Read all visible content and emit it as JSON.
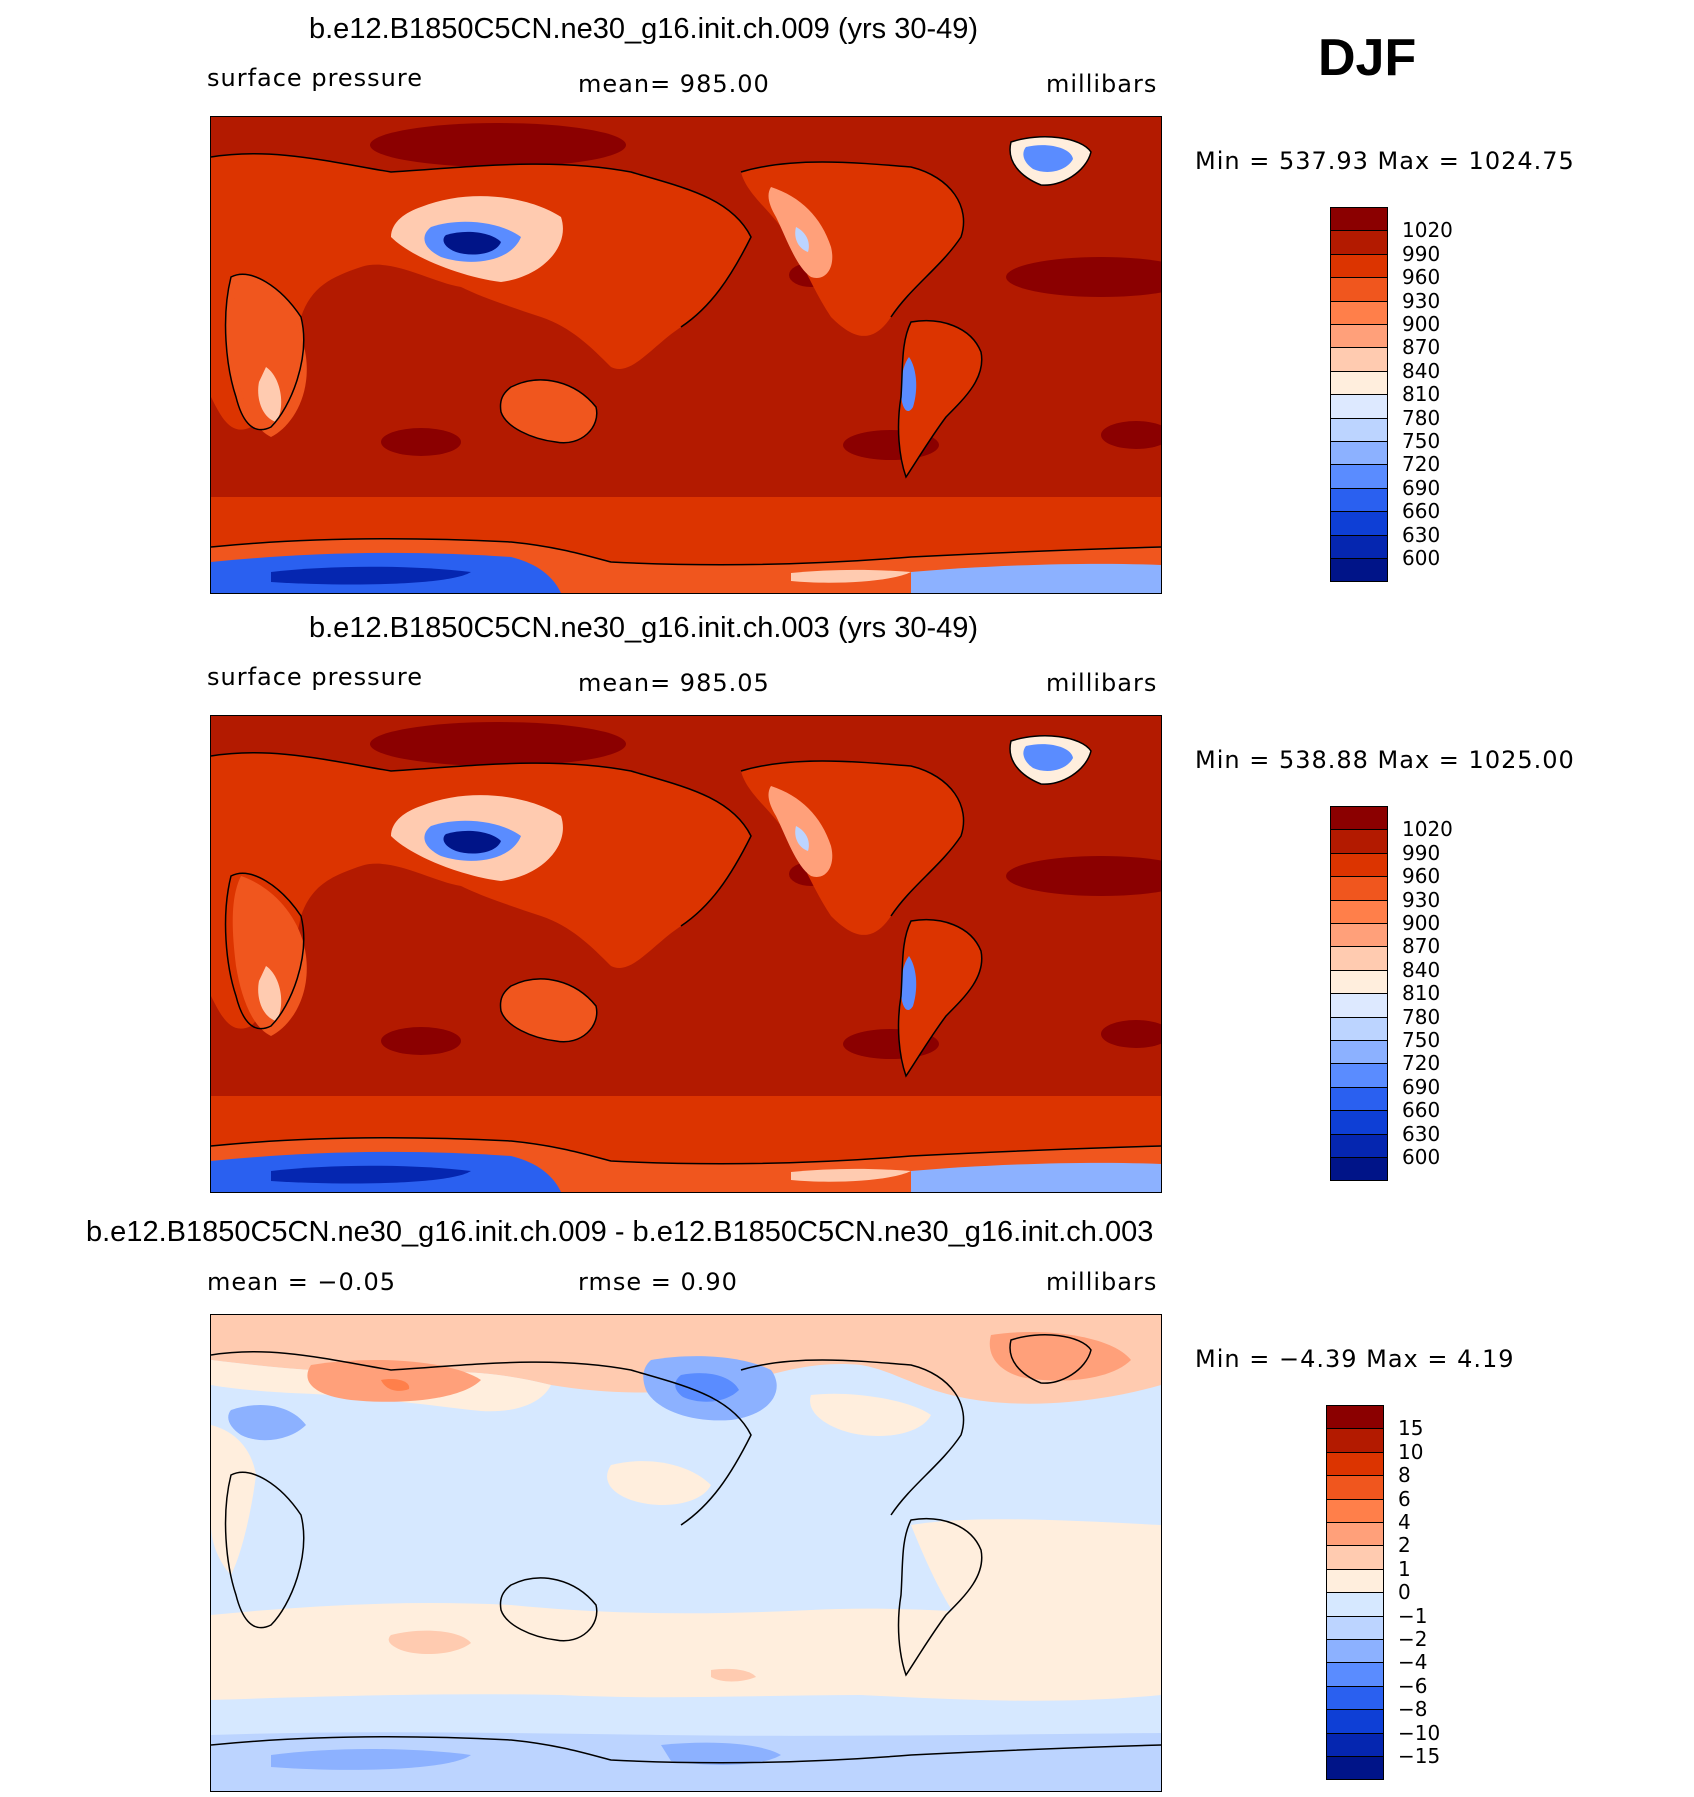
{
  "season": "DJF",
  "panels": [
    {
      "title": "b.e12.B1850C5CN.ne30_g16.init.ch.009 (yrs 30-49)",
      "left_label": "surface pressure",
      "center_label": "mean=  985.00",
      "units": "millibars",
      "minmax": "Min  =  537.93  Max  =  1024.75",
      "colorbar": {
        "colors": [
          "#8b0000",
          "#b31a00",
          "#dc3400",
          "#f0561e",
          "#ff7f4a",
          "#ffa07a",
          "#ffcbb0",
          "#ffeedd",
          "#dde9ff",
          "#bcd4ff",
          "#8cb1ff",
          "#5a8cff",
          "#2a60f0",
          "#0e3fd6",
          "#0526b0",
          "#001488"
        ],
        "labels": [
          "1020",
          "990",
          "960",
          "930",
          "900",
          "870",
          "840",
          "810",
          "780",
          "750",
          "720",
          "690",
          "660",
          "630",
          "600"
        ]
      }
    },
    {
      "title": "b.e12.B1850C5CN.ne30_g16.init.ch.003 (yrs 30-49)",
      "left_label": "surface pressure",
      "center_label": "mean=  985.05",
      "units": "millibars",
      "minmax": "Min  =  538.88  Max  =  1025.00",
      "colorbar": {
        "colors": [
          "#8b0000",
          "#b31a00",
          "#dc3400",
          "#f0561e",
          "#ff7f4a",
          "#ffa07a",
          "#ffcbb0",
          "#ffeedd",
          "#dde9ff",
          "#bcd4ff",
          "#8cb1ff",
          "#5a8cff",
          "#2a60f0",
          "#0e3fd6",
          "#0526b0",
          "#001488"
        ],
        "labels": [
          "1020",
          "990",
          "960",
          "930",
          "900",
          "870",
          "840",
          "810",
          "780",
          "750",
          "720",
          "690",
          "660",
          "630",
          "600"
        ]
      }
    },
    {
      "title": "b.e12.B1850C5CN.ne30_g16.init.ch.009 - b.e12.B1850C5CN.ne30_g16.init.ch.003",
      "left_label": "mean  =    −0.05",
      "center_label": "rmse  =     0.90",
      "units": "millibars",
      "minmax": "Min  =    −4.39  Max  =     4.19",
      "colorbar": {
        "colors": [
          "#8b0000",
          "#b31a00",
          "#dc3400",
          "#f0561e",
          "#ff7f4a",
          "#ffa07a",
          "#ffcbb0",
          "#ffeedd",
          "#d6e8ff",
          "#bcd4ff",
          "#8cb1ff",
          "#5a8cff",
          "#2a60f0",
          "#0e3fd6",
          "#0526b0",
          "#001488"
        ],
        "labels": [
          "15",
          "10",
          "8",
          "6",
          "4",
          "2",
          "1",
          "0",
          "−1",
          "−2",
          "−4",
          "−6",
          "−8",
          "−10",
          "−15"
        ]
      }
    }
  ]
}
